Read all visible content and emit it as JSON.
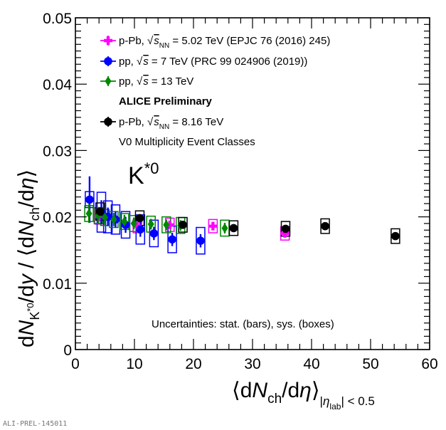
{
  "chart_data": {
    "type": "scatter",
    "title": "",
    "xlabel": "⟨dN_ch/dη⟩_{|η_lab| < 0.5}",
    "ylabel": "dN_{K*0}/dy / ⟨dN_ch/dη⟩",
    "xlim": [
      0,
      60
    ],
    "ylim": [
      0,
      0.05
    ],
    "x_ticks": [
      "0",
      "10",
      "20",
      "30",
      "40",
      "50",
      "60"
    ],
    "y_ticks": [
      "0",
      "0.01",
      "0.02",
      "0.03",
      "0.04",
      "0.05"
    ],
    "particle_label": "K*0",
    "annotations": {
      "experiment": "ALICE Preliminary",
      "event_classes": "V0 Multiplicity Event Classes",
      "uncertainties": "Uncertainties: stat. (bars), sys. (boxes)",
      "watermark": "ALI-PREL-145011"
    },
    "series": [
      {
        "name": "p-Pb, √s_NN = 5.02 TeV (EPJC 76 (2016) 245)",
        "legend": {
          "pre": "p-Pb, ",
          "sym": "s",
          "sub": "NN",
          "post": " = 5.02 TeV (EPJC 76 (2016) 245)"
        },
        "color": "#ff00ff",
        "marker": "cross",
        "points": [
          {
            "x": 4.0,
            "y": 0.0201,
            "stat": 0.0008,
            "sys": 0.0012
          },
          {
            "x": 10.5,
            "y": 0.0186,
            "stat": 0.0006,
            "sys": 0.001
          },
          {
            "x": 16.0,
            "y": 0.0188,
            "stat": 0.0006,
            "sys": 0.001
          },
          {
            "x": 23.3,
            "y": 0.0186,
            "stat": 0.0006,
            "sys": 0.001
          },
          {
            "x": 35.5,
            "y": 0.0175,
            "stat": 0.0006,
            "sys": 0.001
          }
        ]
      },
      {
        "name": "pp, √s = 7 TeV (PRC 99 024906 (2019))",
        "legend": {
          "pre": "pp, ",
          "sym": "s",
          "sub": "",
          "post": " = 7 TeV (PRC 99 024906 (2019))"
        },
        "color": "#0000ff",
        "marker": "circle",
        "points": [
          {
            "x": 2.4,
            "y": 0.0226,
            "stat": 0.0035,
            "sys": 0.0012
          },
          {
            "x": 4.4,
            "y": 0.0207,
            "stat": 0.0018,
            "sys": 0.003
          },
          {
            "x": 5.5,
            "y": 0.02,
            "stat": 0.0014,
            "sys": 0.0024
          },
          {
            "x": 6.8,
            "y": 0.0196,
            "stat": 0.0012,
            "sys": 0.0022
          },
          {
            "x": 8.5,
            "y": 0.0188,
            "stat": 0.0012,
            "sys": 0.002
          },
          {
            "x": 11.0,
            "y": 0.0181,
            "stat": 0.0011,
            "sys": 0.0022
          },
          {
            "x": 13.3,
            "y": 0.0175,
            "stat": 0.001,
            "sys": 0.002
          },
          {
            "x": 16.4,
            "y": 0.0166,
            "stat": 0.001,
            "sys": 0.002
          },
          {
            "x": 21.2,
            "y": 0.0164,
            "stat": 0.001,
            "sys": 0.002
          }
        ]
      },
      {
        "name": "pp, √s = 13 TeV",
        "legend": {
          "pre": "pp, ",
          "sym": "s",
          "sub": "",
          "post": " = 13 TeV"
        },
        "color": "#008800",
        "marker": "diamond",
        "points": [
          {
            "x": 2.3,
            "y": 0.0205,
            "stat": 0.0014,
            "sys": 0.0012
          },
          {
            "x": 3.9,
            "y": 0.0202,
            "stat": 0.0012,
            "sys": 0.0012
          },
          {
            "x": 5.0,
            "y": 0.0199,
            "stat": 0.0011,
            "sys": 0.0012
          },
          {
            "x": 6.5,
            "y": 0.0196,
            "stat": 0.001,
            "sys": 0.0012
          },
          {
            "x": 8.3,
            "y": 0.0193,
            "stat": 0.001,
            "sys": 0.0012
          },
          {
            "x": 9.9,
            "y": 0.019,
            "stat": 0.0009,
            "sys": 0.0012
          },
          {
            "x": 12.8,
            "y": 0.0189,
            "stat": 0.0008,
            "sys": 0.0012
          },
          {
            "x": 15.4,
            "y": 0.0188,
            "stat": 0.0008,
            "sys": 0.0012
          },
          {
            "x": 17.8,
            "y": 0.0187,
            "stat": 0.0008,
            "sys": 0.0012
          },
          {
            "x": 25.3,
            "y": 0.0183,
            "stat": 0.0008,
            "sys": 0.0012
          }
        ]
      },
      {
        "name": "p-Pb, √s_NN = 8.16 TeV",
        "legend": {
          "pre": "p-Pb, ",
          "sym": "s",
          "sub": "NN",
          "post": " = 8.16 TeV"
        },
        "color": "#000000",
        "marker": "circle",
        "points": [
          {
            "x": 4.2,
            "y": 0.0208,
            "stat": 0.0006,
            "sys": 0.0013
          },
          {
            "x": 10.9,
            "y": 0.0198,
            "stat": 0.0005,
            "sys": 0.0011
          },
          {
            "x": 18.2,
            "y": 0.0188,
            "stat": 0.0004,
            "sys": 0.0011
          },
          {
            "x": 26.8,
            "y": 0.0183,
            "stat": 0.0004,
            "sys": 0.0011
          },
          {
            "x": 35.6,
            "y": 0.0182,
            "stat": 0.0004,
            "sys": 0.0011
          },
          {
            "x": 42.3,
            "y": 0.0186,
            "stat": 0.0004,
            "sys": 0.0011
          },
          {
            "x": 54.2,
            "y": 0.0171,
            "stat": 0.0004,
            "sys": 0.0011
          }
        ]
      }
    ]
  }
}
